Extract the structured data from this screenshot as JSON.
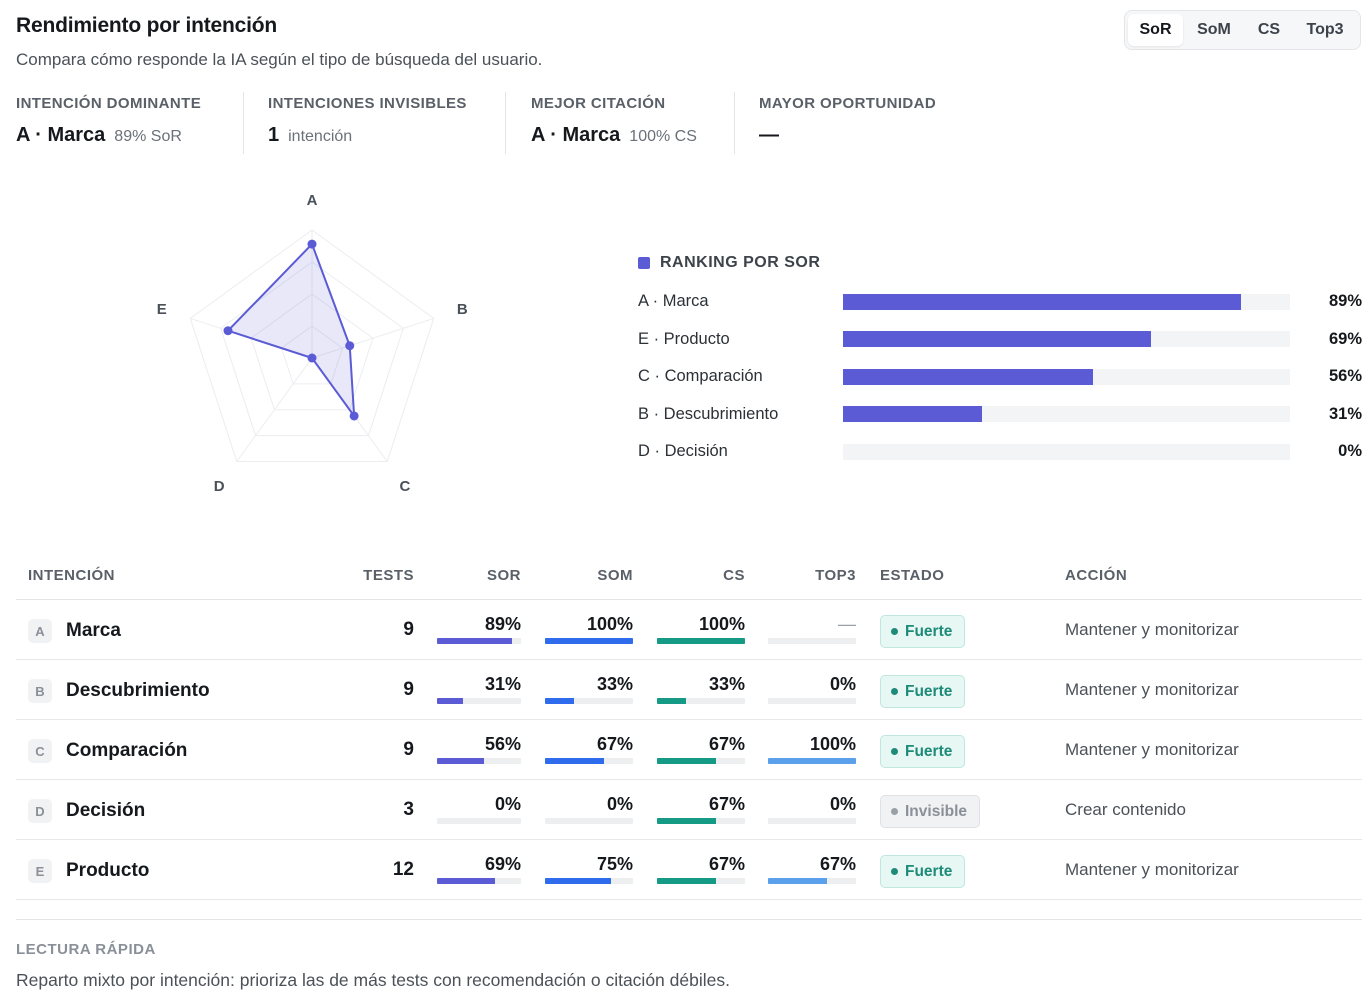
{
  "header": {
    "title": "Rendimiento por intención",
    "subtitle": "Compara cómo responde la IA según el tipo de búsqueda del usuario."
  },
  "metric_tabs": [
    {
      "label": "SoR",
      "active": true
    },
    {
      "label": "SoM",
      "active": false
    },
    {
      "label": "CS",
      "active": false
    },
    {
      "label": "Top3",
      "active": false
    }
  ],
  "kpis": [
    {
      "label": "INTENCIÓN DOMINANTE",
      "value": "A · Marca",
      "sub": "89% SoR"
    },
    {
      "label": "INTENCIONES INVISIBLES",
      "value": "1",
      "sub": "intención"
    },
    {
      "label": "MEJOR CITACIÓN",
      "value": "A · Marca",
      "sub": "100% CS"
    },
    {
      "label": "MAYOR OPORTUNIDAD",
      "value": "—",
      "sub": ""
    }
  ],
  "radar": {
    "axes": [
      "A",
      "B",
      "C",
      "D",
      "E"
    ],
    "values": [
      89,
      31,
      56,
      0,
      69
    ],
    "max": 100,
    "color": "#5b5bd6"
  },
  "ranking": {
    "title": "RANKING POR SOR",
    "color": "#5b5bd6",
    "items": [
      {
        "label": "A · Marca",
        "value": 89,
        "pct": "89%"
      },
      {
        "label": "E · Producto",
        "value": 69,
        "pct": "69%"
      },
      {
        "label": "C · Comparación",
        "value": 56,
        "pct": "56%"
      },
      {
        "label": "B · Descubrimiento",
        "value": 31,
        "pct": "31%"
      },
      {
        "label": "D · Decisión",
        "value": 0,
        "pct": "0%"
      }
    ]
  },
  "table": {
    "headers": {
      "intent": "INTENCIÓN",
      "tests": "TESTS",
      "sor": "SOR",
      "som": "SOM",
      "cs": "CS",
      "top3": "TOP3",
      "status": "ESTADO",
      "action": "ACCIÓN"
    },
    "colors": {
      "sor": "#5b5bd6",
      "som": "#2f6bed",
      "cs": "#159a86",
      "top3": "#5aa0ea"
    },
    "rows": [
      {
        "letter": "A",
        "name": "Marca",
        "tests": "9",
        "sor": {
          "text": "89%",
          "value": 89
        },
        "som": {
          "text": "100%",
          "value": 100
        },
        "cs": {
          "text": "100%",
          "value": 100
        },
        "top3": {
          "text": "—",
          "value": 0
        },
        "status": "Fuerte",
        "status_kind": "strong",
        "action": "Mantener y monitorizar"
      },
      {
        "letter": "B",
        "name": "Descubrimiento",
        "tests": "9",
        "sor": {
          "text": "31%",
          "value": 31
        },
        "som": {
          "text": "33%",
          "value": 33
        },
        "cs": {
          "text": "33%",
          "value": 33
        },
        "top3": {
          "text": "0%",
          "value": 0
        },
        "status": "Fuerte",
        "status_kind": "strong",
        "action": "Mantener y monitorizar"
      },
      {
        "letter": "C",
        "name": "Comparación",
        "tests": "9",
        "sor": {
          "text": "56%",
          "value": 56
        },
        "som": {
          "text": "67%",
          "value": 67
        },
        "cs": {
          "text": "67%",
          "value": 67
        },
        "top3": {
          "text": "100%",
          "value": 100
        },
        "status": "Fuerte",
        "status_kind": "strong",
        "action": "Mantener y monitorizar"
      },
      {
        "letter": "D",
        "name": "Decisión",
        "tests": "3",
        "sor": {
          "text": "0%",
          "value": 0
        },
        "som": {
          "text": "0%",
          "value": 0
        },
        "cs": {
          "text": "67%",
          "value": 67
        },
        "top3": {
          "text": "0%",
          "value": 0
        },
        "status": "Invisible",
        "status_kind": "invisible",
        "action": "Crear contenido"
      },
      {
        "letter": "E",
        "name": "Producto",
        "tests": "12",
        "sor": {
          "text": "69%",
          "value": 69
        },
        "som": {
          "text": "75%",
          "value": 75
        },
        "cs": {
          "text": "67%",
          "value": 67
        },
        "top3": {
          "text": "67%",
          "value": 67
        },
        "status": "Fuerte",
        "status_kind": "strong",
        "action": "Mantener y monitorizar"
      }
    ]
  },
  "quick_read": {
    "label": "LECTURA RÁPIDA",
    "text": "Reparto mixto por intención: prioriza las de más tests con recomendación o citación débiles."
  }
}
